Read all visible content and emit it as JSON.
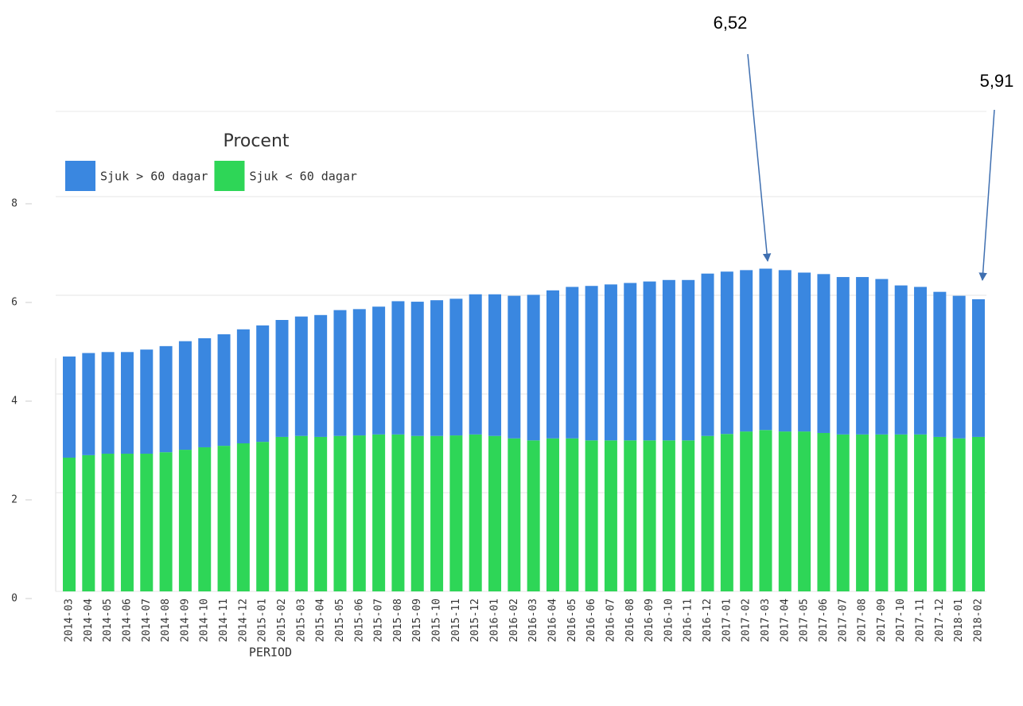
{
  "chart_data": {
    "type": "stacked_bar",
    "legend_title": "Procent",
    "x_label": "PERIOD",
    "annotations": [
      "6,52",
      "5,91"
    ],
    "categories": [
      "2014-03",
      "2014-04",
      "2014-05",
      "2014-06",
      "2014-07",
      "2014-08",
      "2014-09",
      "2014-10",
      "2014-11",
      "2014-12",
      "2015-01",
      "2015-02",
      "2015-03",
      "2015-04",
      "2015-05",
      "2015-06",
      "2015-07",
      "2015-08",
      "2015-09",
      "2015-10",
      "2015-11",
      "2015-12",
      "2016-01",
      "2016-02",
      "2016-03",
      "2016-04",
      "2016-05",
      "2016-06",
      "2016-07",
      "2016-08",
      "2016-09",
      "2016-10",
      "2016-11",
      "2016-12",
      "2017-01",
      "2017-02",
      "2017-03",
      "2017-04",
      "2017-05",
      "2017-06",
      "2017-07",
      "2017-08",
      "2017-09",
      "2017-10",
      "2017-11",
      "2017-12",
      "2018-01",
      "2018-02"
    ],
    "series": [
      {
        "name": "Sjuk > 60 dagar",
        "color": "#3a87e0",
        "values": [
          2.05,
          2.07,
          2.06,
          2.06,
          2.11,
          2.15,
          2.2,
          2.21,
          2.26,
          2.31,
          2.36,
          2.37,
          2.42,
          2.47,
          2.55,
          2.56,
          2.59,
          2.7,
          2.72,
          2.75,
          2.77,
          2.84,
          2.87,
          2.89,
          2.95,
          3.0,
          3.07,
          3.13,
          3.16,
          3.19,
          3.22,
          3.25,
          3.25,
          3.29,
          3.29,
          3.27,
          3.27,
          3.27,
          3.22,
          3.22,
          3.19,
          3.19,
          3.15,
          3.02,
          2.99,
          2.94,
          2.89,
          2.79
        ]
      },
      {
        "name": "Sjuk < 60 dagar",
        "color": "#2ed657",
        "values": [
          2.71,
          2.76,
          2.79,
          2.79,
          2.79,
          2.82,
          2.87,
          2.92,
          2.95,
          3.0,
          3.03,
          3.13,
          3.15,
          3.13,
          3.15,
          3.16,
          3.18,
          3.18,
          3.15,
          3.15,
          3.16,
          3.18,
          3.15,
          3.1,
          3.06,
          3.1,
          3.1,
          3.06,
          3.06,
          3.06,
          3.06,
          3.06,
          3.06,
          3.15,
          3.19,
          3.24,
          3.27,
          3.24,
          3.24,
          3.21,
          3.18,
          3.18,
          3.18,
          3.18,
          3.18,
          3.13,
          3.1,
          3.13
        ]
      }
    ],
    "ylim": [
      0,
      8
    ],
    "yticks": [
      0,
      2,
      4,
      6,
      8
    ],
    "grid": true
  }
}
